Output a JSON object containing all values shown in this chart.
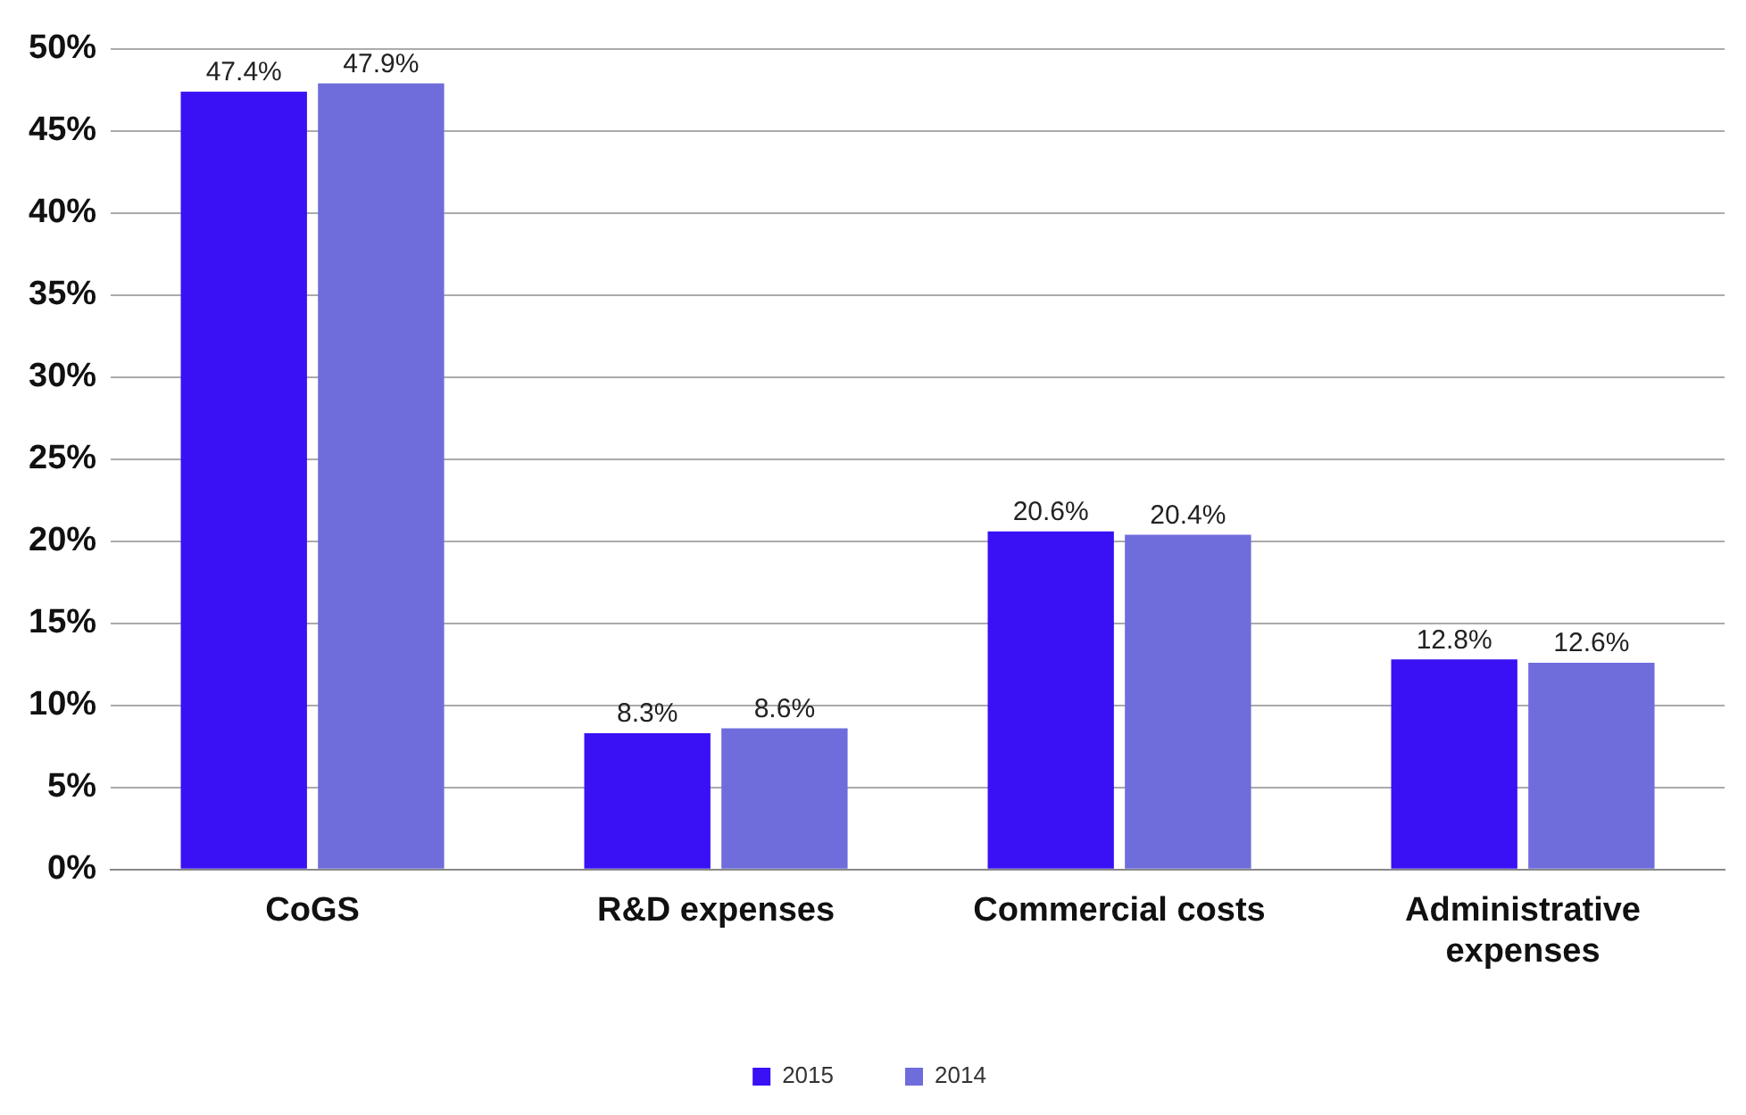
{
  "chart_data": {
    "type": "bar",
    "categories": [
      "CoGS",
      "R&D expenses",
      "Commercial costs",
      "Administrative expenses"
    ],
    "series": [
      {
        "name": "2015",
        "color": "#3a10f5",
        "values": [
          47.4,
          8.3,
          20.6,
          12.8
        ],
        "value_labels": [
          "47.4%",
          "8.3%",
          "20.6%",
          "12.8%"
        ]
      },
      {
        "name": "2014",
        "color": "#6f6cdc",
        "values": [
          47.9,
          8.6,
          20.4,
          12.6
        ],
        "value_labels": [
          "47.9%",
          "8.6%",
          "20.4%",
          "12.6%"
        ]
      }
    ],
    "ylim": [
      0,
      50
    ],
    "yticks": [
      {
        "value": 0,
        "label": "0%"
      },
      {
        "value": 5,
        "label": "5%"
      },
      {
        "value": 10,
        "label": "10%"
      },
      {
        "value": 15,
        "label": "15%"
      },
      {
        "value": 20,
        "label": "20%"
      },
      {
        "value": 25,
        "label": "25%"
      },
      {
        "value": 30,
        "label": "30%"
      },
      {
        "value": 35,
        "label": "35%"
      },
      {
        "value": 40,
        "label": "40%"
      },
      {
        "value": 45,
        "label": "45%"
      },
      {
        "value": 50,
        "label": "50%"
      }
    ],
    "grid": "y",
    "legend": "bottom"
  }
}
